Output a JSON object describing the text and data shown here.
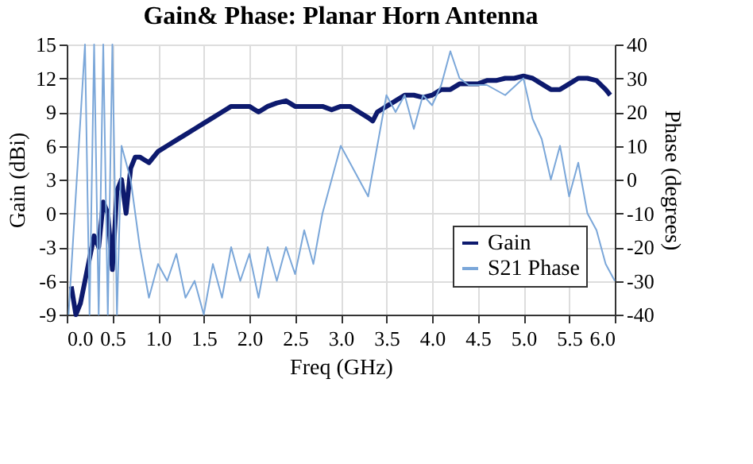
{
  "chart_data": {
    "type": "line",
    "title": "Gain& Phase: Planar Horn Antenna",
    "xlabel": "Freq (GHz)",
    "ylabel": "Gain (dBi)",
    "y2label": "Phase (degrees)",
    "xlim": [
      0,
      6
    ],
    "xticks": [
      {
        "value": 0,
        "label": "0.0"
      },
      {
        "value": 0.5,
        "label": "0.5"
      },
      {
        "value": 1,
        "label": "1.0"
      },
      {
        "value": 1.5,
        "label": "1.5"
      },
      {
        "value": 2,
        "label": "2.0"
      },
      {
        "value": 2.5,
        "label": "2.5"
      },
      {
        "value": 3,
        "label": "3.0"
      },
      {
        "value": 3.5,
        "label": "3.5"
      },
      {
        "value": 4,
        "label": "4.0"
      },
      {
        "value": 4.5,
        "label": "4.5"
      },
      {
        "value": 5,
        "label": "5.0"
      },
      {
        "value": 5.5,
        "label": "5.5"
      },
      {
        "value": 6,
        "label": "6.0"
      }
    ],
    "ylim": [
      -9,
      15
    ],
    "yticks": [
      -9,
      -6,
      -3,
      0,
      3,
      6,
      9,
      12,
      15
    ],
    "y2lim": [
      -40,
      40
    ],
    "y2ticks": [
      -40,
      -30,
      -20,
      -10,
      0,
      10,
      20,
      30,
      40
    ],
    "grid": true,
    "legend": "bottom right",
    "series": [
      {
        "name": "Gain",
        "color": "#0d1a6e",
        "axis": "y",
        "x": [
          0.05,
          0.1,
          0.15,
          0.2,
          0.25,
          0.3,
          0.35,
          0.4,
          0.45,
          0.5,
          0.55,
          0.6,
          0.65,
          0.7,
          0.75,
          0.8,
          0.9,
          1.0,
          1.1,
          1.2,
          1.3,
          1.4,
          1.5,
          1.6,
          1.7,
          1.8,
          1.9,
          2.0,
          2.1,
          2.2,
          2.3,
          2.4,
          2.5,
          2.6,
          2.7,
          2.8,
          2.9,
          3.0,
          3.1,
          3.2,
          3.3,
          3.35,
          3.4,
          3.5,
          3.6,
          3.7,
          3.8,
          3.9,
          4.0,
          4.1,
          4.2,
          4.3,
          4.4,
          4.5,
          4.6,
          4.7,
          4.8,
          4.9,
          5.0,
          5.1,
          5.2,
          5.3,
          5.4,
          5.5,
          5.6,
          5.7,
          5.8,
          5.9,
          5.95
        ],
        "values": [
          -6.5,
          -9,
          -8,
          -6,
          -4,
          -2,
          -3,
          1,
          0,
          -5,
          2,
          3,
          0,
          4,
          5,
          5,
          4.5,
          5.5,
          6,
          6.5,
          7,
          7.5,
          8,
          8.5,
          9,
          9.5,
          9.5,
          9.5,
          9,
          9.5,
          9.8,
          10,
          9.5,
          9.5,
          9.5,
          9.5,
          9.2,
          9.5,
          9.5,
          9,
          8.5,
          8.2,
          9,
          9.5,
          10,
          10.5,
          10.5,
          10.3,
          10.5,
          11,
          11,
          11.5,
          11.5,
          11.5,
          11.8,
          11.8,
          12,
          12,
          12.2,
          12,
          11.5,
          11,
          11,
          11.5,
          12,
          12,
          11.8,
          11,
          10.5
        ]
      },
      {
        "name": "S21 Phase",
        "color": "#7ba7d9",
        "axis": "y2",
        "x": [
          0.02,
          0.2,
          0.25,
          0.3,
          0.35,
          0.4,
          0.45,
          0.5,
          0.55,
          0.6,
          0.7,
          0.8,
          0.9,
          1.0,
          1.1,
          1.2,
          1.3,
          1.4,
          1.5,
          1.6,
          1.7,
          1.8,
          1.9,
          2.0,
          2.1,
          2.2,
          2.3,
          2.4,
          2.5,
          2.6,
          2.7,
          2.8,
          2.9,
          3.0,
          3.1,
          3.2,
          3.3,
          3.4,
          3.5,
          3.6,
          3.7,
          3.8,
          3.9,
          4.0,
          4.1,
          4.2,
          4.3,
          4.4,
          4.6,
          4.8,
          5.0,
          5.1,
          5.2,
          5.3,
          5.4,
          5.5,
          5.6,
          5.7,
          5.8,
          5.9,
          6.0
        ],
        "values": [
          -40,
          40,
          -40,
          40,
          -40,
          40,
          -40,
          40,
          -40,
          10,
          0,
          -20,
          -35,
          -25,
          -30,
          -22,
          -35,
          -30,
          -40,
          -25,
          -35,
          -20,
          -30,
          -22,
          -35,
          -20,
          -30,
          -20,
          -28,
          -15,
          -25,
          -10,
          0,
          10,
          5,
          0,
          -5,
          10,
          25,
          20,
          25,
          15,
          25,
          22,
          28,
          38,
          30,
          28,
          28,
          25,
          30,
          18,
          12,
          0,
          10,
          -5,
          5,
          -10,
          -15,
          -25,
          -30
        ]
      }
    ]
  }
}
